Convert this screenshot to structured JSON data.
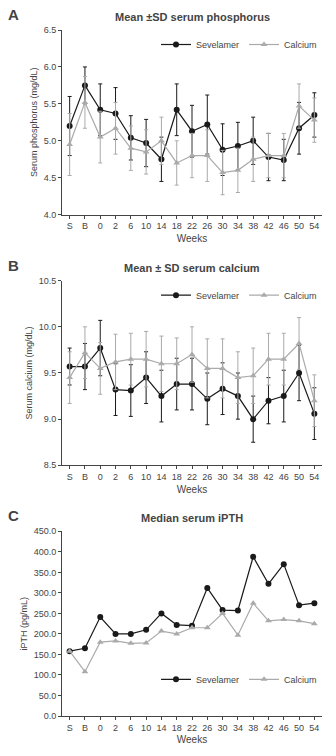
{
  "chart_data": [
    {
      "type": "line",
      "title": "Mean ±SD serum phosphorus",
      "annotations": [
        "A"
      ],
      "xlabel": "Weeks",
      "ylabel": "Serum phosphorus (mg/dL)",
      "categories": [
        "S",
        "B",
        "0",
        "2",
        "6",
        "10",
        "14",
        "18",
        "22",
        "26",
        "30",
        "34",
        "38",
        "42",
        "46",
        "50",
        "54"
      ],
      "series": [
        {
          "name": "Sevelamer",
          "color": "#1a1a1a",
          "marker": "circle",
          "line_style": "solid",
          "values": [
            5.2,
            5.75,
            5.42,
            5.37,
            5.04,
            4.97,
            4.75,
            5.42,
            5.13,
            5.22,
            4.88,
            4.93,
            5.0,
            4.78,
            4.74,
            5.17,
            5.35
          ],
          "errors": [
            0.4,
            0.25,
            0.35,
            0.35,
            0.3,
            0.32,
            0.3,
            0.35,
            0.35,
            0.4,
            0.35,
            0.32,
            0.32,
            0.32,
            0.28,
            0.35,
            0.3
          ]
        },
        {
          "name": "Calcium",
          "color": "#aaaaaa",
          "marker": "triangle",
          "line_style": "solid",
          "values": [
            4.95,
            5.52,
            5.05,
            5.17,
            4.9,
            4.85,
            5.0,
            4.7,
            4.8,
            4.8,
            4.57,
            4.6,
            4.75,
            4.8,
            4.8,
            5.47,
            5.28
          ],
          "errors": [
            0.42,
            0.35,
            0.35,
            0.35,
            0.3,
            0.3,
            0.32,
            0.3,
            0.3,
            0.35,
            0.3,
            0.3,
            0.3,
            0.3,
            0.3,
            0.3,
            0.3
          ]
        }
      ],
      "ylim": [
        4.0,
        6.5
      ],
      "yticks": [
        {
          "value": 4.0,
          "label": "4.0"
        },
        4.5,
        {
          "value": 5.0,
          "label": "5.0"
        },
        5.5,
        {
          "value": 6.0,
          "label": "6.0"
        },
        6.5
      ],
      "grid": false,
      "legend": "upper right"
    },
    {
      "type": "line",
      "title": "Mean ± SD serum calcium",
      "annotations": [
        "B"
      ],
      "xlabel": "Weeks",
      "ylabel": "Serum calcium (mg/dL)",
      "categories": [
        "S",
        "B",
        "0",
        "2",
        "6",
        "10",
        "14",
        "18",
        "22",
        "26",
        "30",
        "34",
        "38",
        "42",
        "46",
        "50",
        "54"
      ],
      "series": [
        {
          "name": "Sevelamer",
          "color": "#1a1a1a",
          "marker": "circle",
          "line_style": "solid",
          "values": [
            9.57,
            9.57,
            9.77,
            9.32,
            9.31,
            9.45,
            9.25,
            9.38,
            9.38,
            9.22,
            9.33,
            9.25,
            9.0,
            9.2,
            9.25,
            9.5,
            9.06
          ],
          "errors": [
            0.2,
            0.25,
            0.3,
            0.28,
            0.28,
            0.28,
            0.28,
            0.28,
            0.28,
            0.28,
            0.28,
            0.25,
            0.25,
            0.25,
            0.28,
            0.3,
            0.28
          ]
        },
        {
          "name": "Calcium",
          "color": "#aaaaaa",
          "marker": "triangle",
          "line_style": "solid",
          "values": [
            9.45,
            9.72,
            9.55,
            9.62,
            9.65,
            9.65,
            9.6,
            9.6,
            9.7,
            9.55,
            9.55,
            9.45,
            9.47,
            9.65,
            9.65,
            9.82,
            9.2
          ],
          "errors": [
            0.28,
            0.28,
            0.28,
            0.3,
            0.28,
            0.3,
            0.3,
            0.28,
            0.3,
            0.32,
            0.32,
            0.28,
            0.3,
            0.28,
            0.28,
            0.28,
            0.28
          ]
        }
      ],
      "ylim": [
        8.5,
        10.5
      ],
      "yticks": [
        8.5,
        {
          "value": 9.0,
          "label": "9.0"
        },
        9.5,
        {
          "value": 10.0,
          "label": "10.0"
        },
        10.5
      ],
      "grid": false,
      "legend": "upper right"
    },
    {
      "type": "line",
      "title": "Median serum iPTH",
      "annotations": [
        "C"
      ],
      "xlabel": "Weeks",
      "ylabel": "iPTH (pg/mL)",
      "categories": [
        "S",
        "B",
        "0",
        "2",
        "6",
        "10",
        "14",
        "18",
        "22",
        "26",
        "30",
        "34",
        "38",
        "42",
        "46",
        "50",
        "54"
      ],
      "series": [
        {
          "name": "Sevelamer",
          "color": "#1a1a1a",
          "marker": "circle",
          "line_style": "solid",
          "values": [
            158,
            165,
            241,
            200,
            200,
            210,
            250,
            222,
            220,
            312,
            258,
            257,
            388,
            322,
            370,
            270,
            275
          ]
        },
        {
          "name": "Calcium",
          "color": "#aaaaaa",
          "marker": "triangle",
          "line_style": "solid",
          "values": [
            158,
            108,
            180,
            183,
            177,
            178,
            207,
            200,
            215,
            215,
            250,
            197,
            275,
            232,
            235,
            232,
            225
          ]
        }
      ],
      "ylim": [
        0,
        450
      ],
      "yticks": [
        {
          "value": 0,
          "label": "0.0"
        },
        {
          "value": 50,
          "label": "50.0"
        },
        {
          "value": 100,
          "label": "100.0"
        },
        {
          "value": 150,
          "label": "150.0"
        },
        {
          "value": 200,
          "label": "200.0"
        },
        {
          "value": 250,
          "label": "250.0"
        },
        {
          "value": 300,
          "label": "300.0"
        },
        {
          "value": 350,
          "label": "350.0"
        },
        {
          "value": 400,
          "label": "400.0"
        },
        {
          "value": 450,
          "label": "450.0"
        }
      ],
      "grid": false,
      "legend": "lower right"
    }
  ]
}
